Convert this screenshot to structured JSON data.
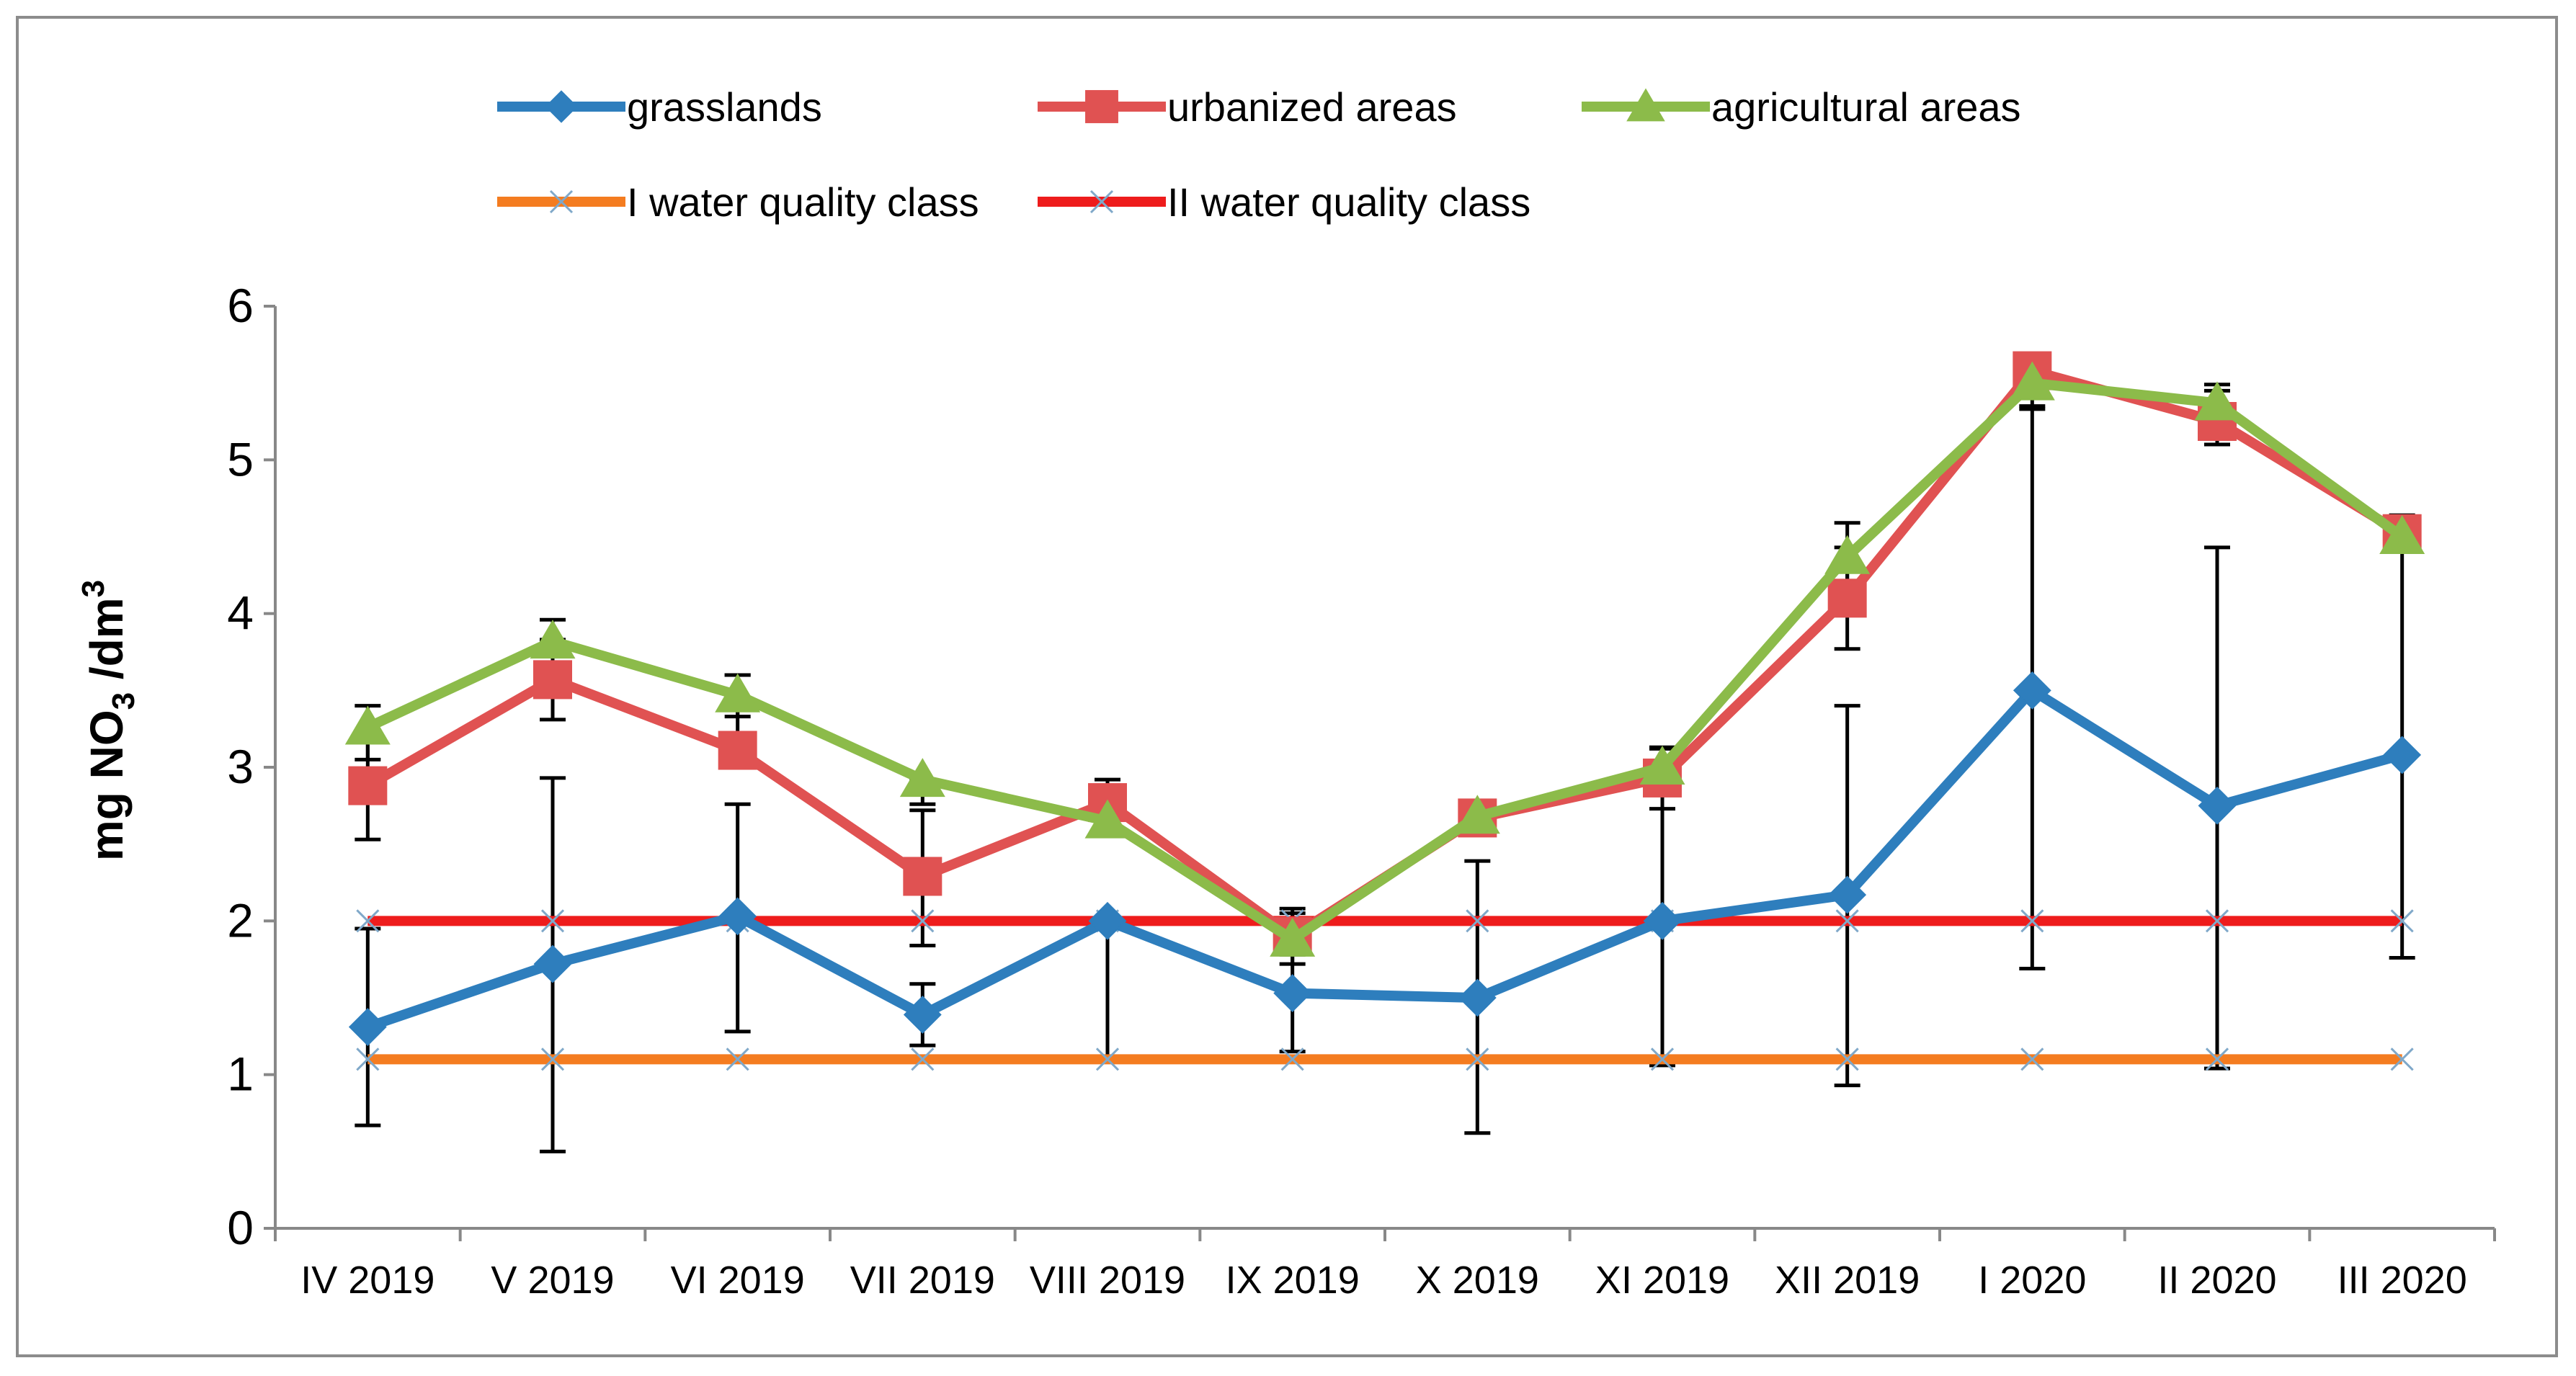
{
  "chart_data": {
    "type": "line",
    "title": "",
    "xlabel": "",
    "ylabel": "mg NO3 /dm3",
    "ylabel_parts": {
      "prefix": "mg NO",
      "sub": "3",
      "middle": " /dm",
      "sup": "3"
    },
    "ylim": [
      0,
      6
    ],
    "yticks": [
      "0",
      "1",
      "2",
      "3",
      "4",
      "5",
      "6"
    ],
    "categories": [
      "IV 2019",
      "V 2019",
      "VI 2019",
      "VII 2019",
      "VIII 2019",
      "IX 2019",
      "X 2019",
      "XI 2019",
      "XII 2019",
      "I 2020",
      "II 2020",
      "III 2020"
    ],
    "series": [
      {
        "name": "grasslands",
        "color": "#2e7ebd",
        "marker": "diamond",
        "values": [
          1.31,
          1.72,
          2.03,
          1.39,
          2.0,
          1.53,
          1.5,
          2.0,
          2.17,
          3.5,
          2.75,
          3.08
        ],
        "error_low": [
          0.67,
          0.5,
          1.28,
          1.19,
          1.1,
          1.15,
          0.62,
          1.06,
          0.93,
          1.69,
          1.04,
          1.76
        ],
        "error_high": [
          1.95,
          2.93,
          2.76,
          1.59,
          2.0,
          2.05,
          2.39,
          2.94,
          3.4,
          5.33,
          4.43,
          4.4
        ]
      },
      {
        "name": "urbanized areas",
        "color": "#e05252",
        "marker": "square",
        "values": [
          2.88,
          3.57,
          3.11,
          2.29,
          2.77,
          1.9,
          2.67,
          2.93,
          4.1,
          5.58,
          5.25,
          4.52
        ],
        "error_low": [
          2.53,
          3.31,
          3.11,
          1.84,
          2.62,
          1.72,
          2.67,
          2.73,
          3.77,
          5.35,
          5.1,
          4.4
        ],
        "error_high": [
          3.23,
          3.83,
          3.6,
          2.72,
          2.92,
          2.08,
          2.67,
          3.13,
          4.43,
          5.58,
          5.45,
          4.64
        ]
      },
      {
        "name": "agricultural areas",
        "color": "#8cbb4a",
        "marker": "triangle",
        "values": [
          3.26,
          3.82,
          3.47,
          2.92,
          2.65,
          1.88,
          2.68,
          3.0,
          4.37,
          5.5,
          5.37,
          4.5
        ],
        "error_low": [
          3.05,
          3.68,
          3.33,
          2.76,
          2.55,
          1.78,
          2.6,
          2.88,
          4.15,
          5.4,
          5.25,
          4.4
        ],
        "error_high": [
          3.4,
          3.96,
          3.6,
          2.92,
          2.75,
          1.98,
          2.76,
          3.12,
          4.59,
          5.6,
          5.49,
          4.6
        ]
      },
      {
        "name": "I water quality class",
        "color": "#f47c20",
        "marker": "x",
        "values": [
          1.1,
          1.1,
          1.1,
          1.1,
          1.1,
          1.1,
          1.1,
          1.1,
          1.1,
          1.1,
          1.1,
          1.1
        ]
      },
      {
        "name": "II water quality class",
        "color": "#ee1c1c",
        "marker": "x",
        "values": [
          2.0,
          2.0,
          2.0,
          2.0,
          2.0,
          2.0,
          2.0,
          2.0,
          2.0,
          2.0,
          2.0,
          2.0
        ]
      }
    ],
    "legend": {
      "placement": "top",
      "entries": [
        "grasslands",
        "urbanized areas",
        "agricultural areas",
        "I water quality class",
        "II water quality class"
      ]
    },
    "grid": false
  }
}
